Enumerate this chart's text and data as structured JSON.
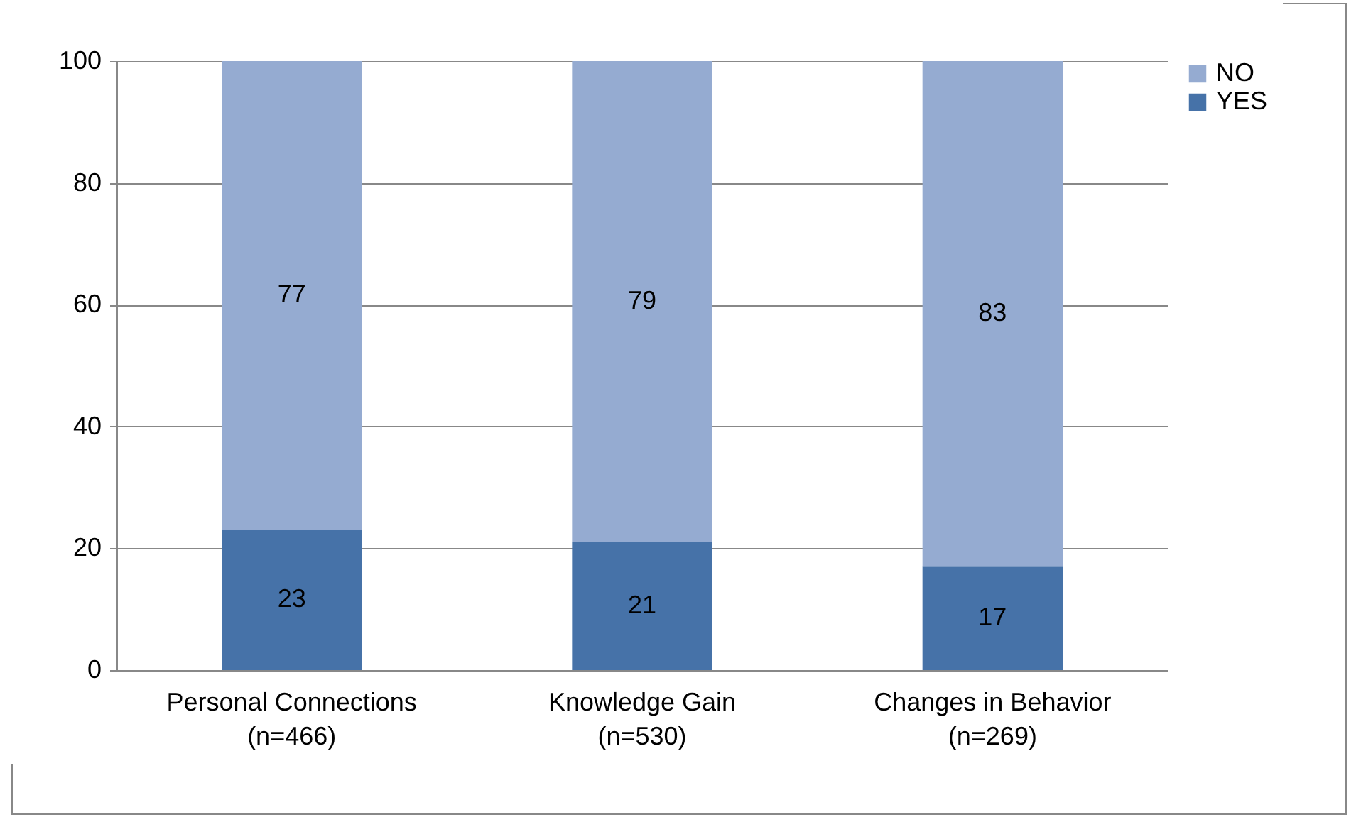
{
  "chart_data": {
    "type": "bar",
    "stacked": true,
    "categories": [
      "Personal Connections\n(n=466)",
      "Knowledge Gain\n(n=530)",
      "Changes in Behavior\n(n=269)"
    ],
    "series": [
      {
        "name": "YES",
        "color": "#4672a8",
        "values": [
          23,
          21,
          17
        ]
      },
      {
        "name": "NO",
        "color": "#95abd1",
        "values": [
          77,
          79,
          83
        ]
      }
    ],
    "ylim": [
      0,
      100
    ],
    "yticks": [
      0,
      20,
      40,
      60,
      80,
      100
    ],
    "grid": "y",
    "legend": "right",
    "data_labels": true
  }
}
